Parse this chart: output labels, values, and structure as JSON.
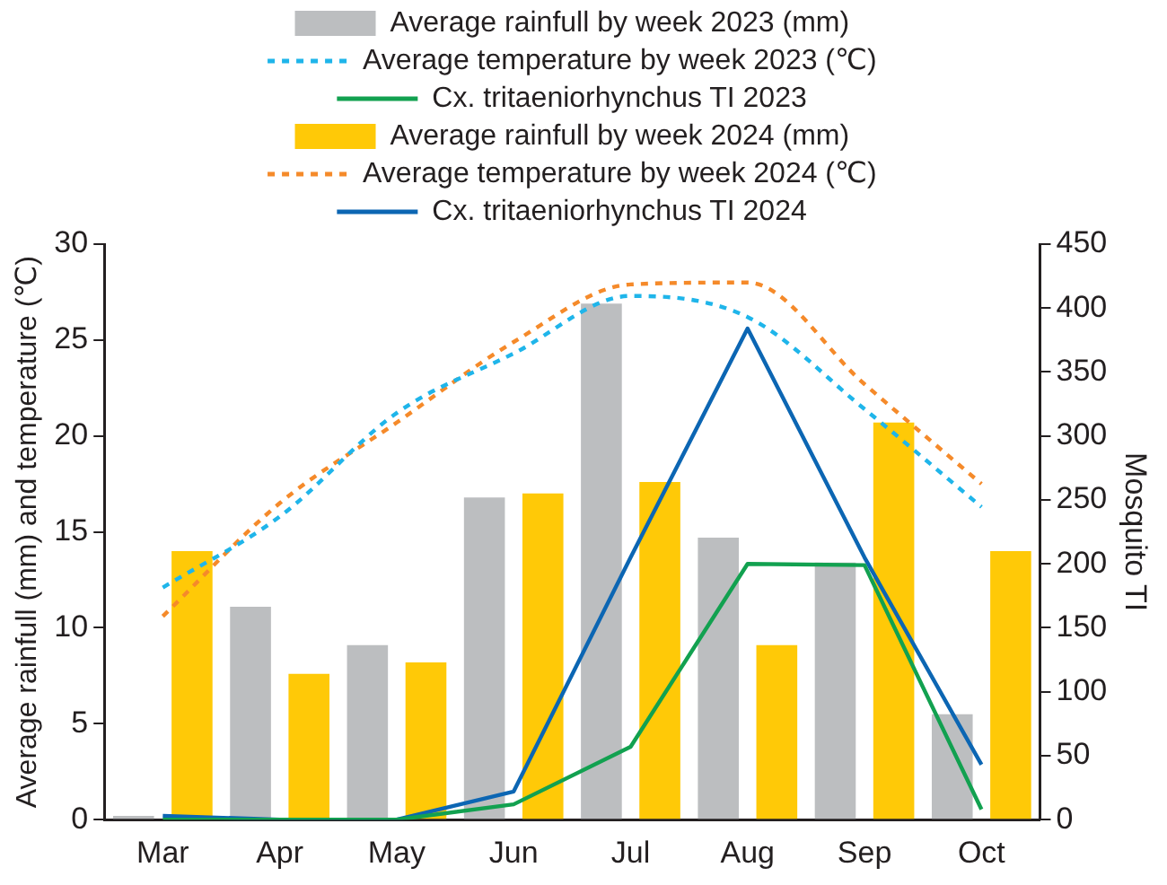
{
  "chart_data": {
    "type": "bar",
    "categories": [
      "Mar",
      "Apr",
      "May",
      "Jun",
      "Jul",
      "Aug",
      "Sep",
      "Oct"
    ],
    "ylabel": "Average rainfull (mm) and temperature (℃)",
    "y2label": "Mosquito TI",
    "ylim": [
      0,
      30
    ],
    "yticks": [
      0,
      5,
      10,
      15,
      20,
      25,
      30
    ],
    "y2lim": [
      0,
      450
    ],
    "y2ticks": [
      0,
      50,
      100,
      150,
      200,
      250,
      300,
      350,
      400,
      450
    ],
    "grid": false,
    "legend": "top",
    "marker": "none",
    "series": [
      {
        "name": "Average rainfull by week 2023 (mm)",
        "color": "#bcbec0",
        "values": [
          0.2,
          11.1,
          9.1,
          16.8,
          26.9,
          14.7,
          13.4,
          5.5
        ]
      },
      {
        "name": "Average temperature by week 2023 (℃)",
        "type": "line",
        "line_style": "dashed",
        "color": "#1fb5ea",
        "values": [
          12.1,
          15.8,
          21.2,
          24.3,
          27.3,
          26.2,
          21.4,
          16.3
        ]
      },
      {
        "name": "Cx. tritaeniorhynchus TI 2023",
        "type": "line",
        "axis": "y2",
        "line_style": "solid",
        "color": "#12a150",
        "values": [
          0,
          0,
          0,
          12,
          57,
          200,
          199,
          8
        ]
      },
      {
        "name": "Average rainfull by week 2024 (mm)",
        "color": "#ffc907",
        "values": [
          14.0,
          7.6,
          8.2,
          17.0,
          17.6,
          9.1,
          20.7,
          14.0
        ]
      },
      {
        "name": "Average temperature by week 2024 (℃)",
        "type": "line",
        "line_style": "dashed",
        "color": "#f58a2a",
        "values": [
          10.6,
          16.5,
          20.7,
          24.9,
          27.9,
          28.0,
          22.7,
          17.5
        ]
      },
      {
        "name": "Cx. tritaeniorhynchus TI 2024",
        "type": "line",
        "axis": "y2",
        "line_style": "solid",
        "color": "#0c66b3",
        "values": [
          3,
          0,
          0,
          22,
          205,
          384,
          205,
          43
        ]
      }
    ]
  }
}
